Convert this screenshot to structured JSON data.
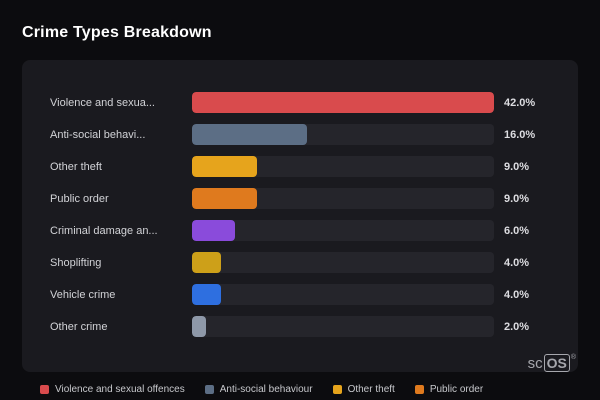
{
  "page": {
    "title": "Crime Types Breakdown"
  },
  "logo": {
    "prefix": "sc",
    "box": "OS",
    "reg": "®"
  },
  "chart_data": {
    "type": "bar",
    "orientation": "horizontal",
    "title": "Crime Types Breakdown",
    "categories": [
      "Violence and sexua...",
      "Anti-social behavi...",
      "Other theft",
      "Public order",
      "Criminal damage an...",
      "Shoplifting",
      "Vehicle crime",
      "Other crime"
    ],
    "values": [
      42.0,
      16.0,
      9.0,
      9.0,
      6.0,
      4.0,
      4.0,
      2.0
    ],
    "value_labels": [
      "42.0%",
      "16.0%",
      "9.0%",
      "9.0%",
      "6.0%",
      "4.0%",
      "4.0%",
      "2.0%"
    ],
    "colors": [
      "#d94b4d",
      "#5c6e85",
      "#e6a41c",
      "#df7a1e",
      "#8a4bdb",
      "#cda019",
      "#2e6fe0",
      "#8e98a8"
    ],
    "max_value": 42,
    "track_color": "#25252b",
    "legend": [
      {
        "label": "Violence and sexual offences",
        "color": "#d94b4d"
      },
      {
        "label": "Anti-social behaviour",
        "color": "#5c6e85"
      },
      {
        "label": "Other theft",
        "color": "#e6a41c"
      },
      {
        "label": "Public order",
        "color": "#df7a1e"
      }
    ]
  }
}
